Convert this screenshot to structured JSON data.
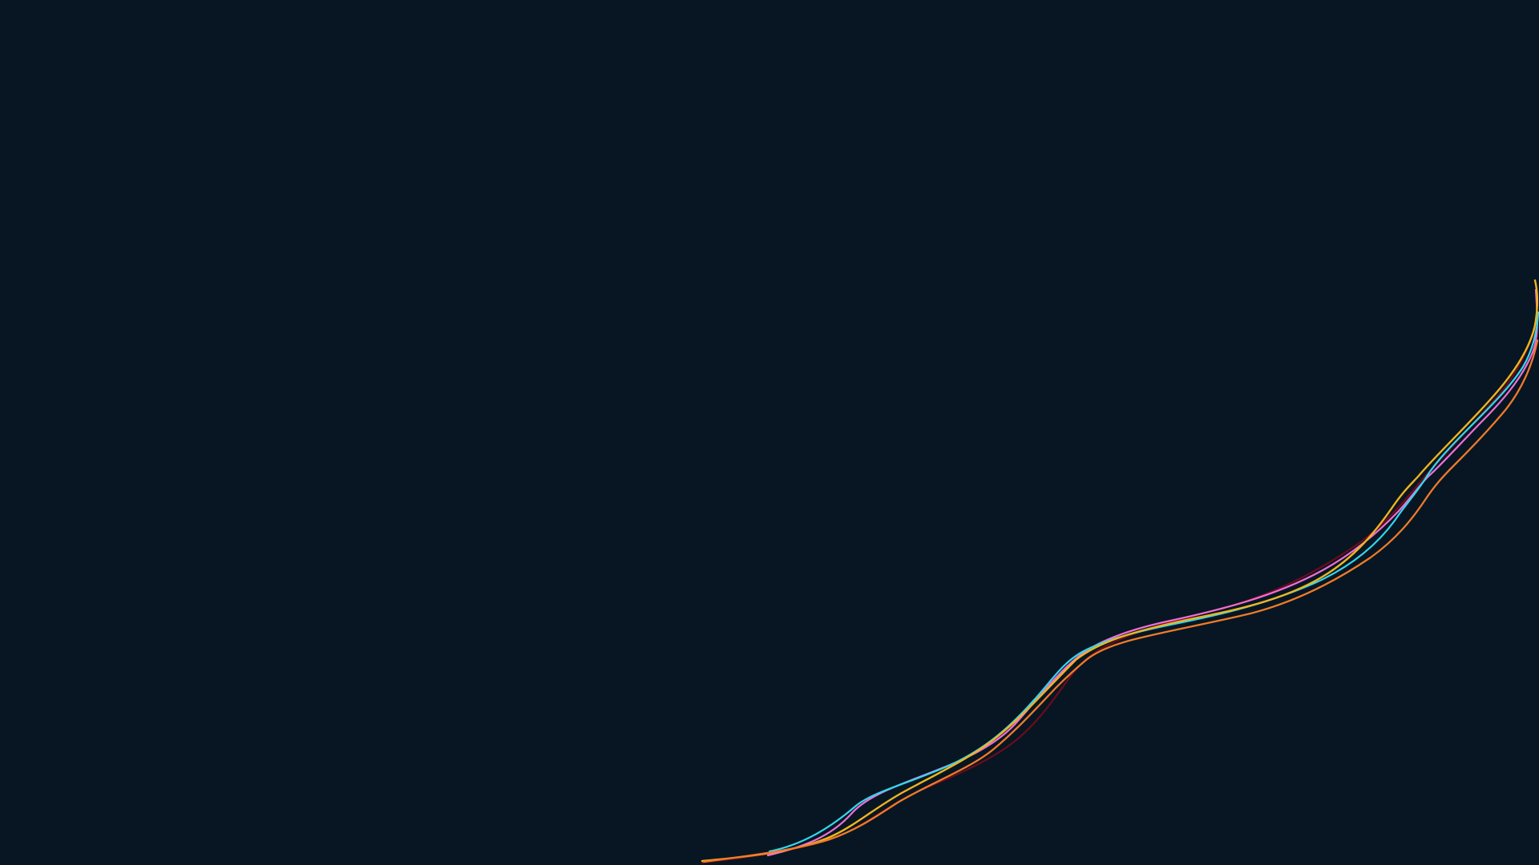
{
  "background": "#071622",
  "lines": [
    {
      "name": "dark-red-line",
      "color": "#6b0c1c"
    },
    {
      "name": "pink-line",
      "color": "#f06ed6"
    },
    {
      "name": "cyan-line",
      "color": "#33d7ee"
    },
    {
      "name": "orange-yellow-line",
      "color": "#f0b41f"
    },
    {
      "name": "orange-line",
      "color": "#f07a2a"
    }
  ]
}
